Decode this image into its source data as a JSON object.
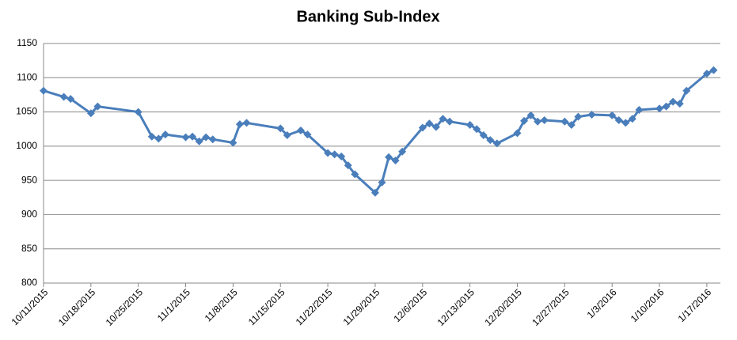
{
  "chart_data": {
    "type": "line",
    "title": "Banking Sub-Index",
    "x": [
      "10/11/2015",
      "10/14/2015",
      "10/15/2015",
      "10/18/2015",
      "10/19/2015",
      "10/25/2015",
      "10/27/2015",
      "10/28/2015",
      "10/29/2015",
      "11/1/2015",
      "11/2/2015",
      "11/3/2015",
      "11/4/2015",
      "11/5/2015",
      "11/8/2015",
      "11/9/2015",
      "11/10/2015",
      "11/15/2015",
      "11/16/2015",
      "11/18/2015",
      "11/19/2015",
      "11/22/2015",
      "11/23/2015",
      "11/24/2015",
      "11/25/2015",
      "11/26/2015",
      "11/29/2015",
      "11/30/2015",
      "12/1/2015",
      "12/2/2015",
      "12/3/2015",
      "12/6/2015",
      "12/7/2015",
      "12/8/2015",
      "12/9/2015",
      "12/10/2015",
      "12/13/2015",
      "12/14/2015",
      "12/15/2015",
      "12/16/2015",
      "12/17/2015",
      "12/20/2015",
      "12/21/2015",
      "12/22/2015",
      "12/23/2015",
      "12/24/2015",
      "12/27/2015",
      "12/28/2015",
      "12/29/2015",
      "12/31/2015",
      "1/3/2016",
      "1/4/2016",
      "1/5/2016",
      "1/6/2016",
      "1/7/2016",
      "1/10/2016",
      "1/11/2016",
      "1/12/2016",
      "1/13/2016",
      "1/14/2016",
      "1/17/2016",
      "1/18/2016"
    ],
    "series": [
      {
        "name": "Banking Sub-Index",
        "color": "#4a7ebb",
        "values": [
          1081,
          1072,
          1069,
          1048,
          1058,
          1050,
          1014,
          1011,
          1017,
          1013,
          1014,
          1007,
          1013,
          1010,
          1005,
          1032,
          1034,
          1026,
          1016,
          1023,
          1017,
          990,
          988,
          985,
          972,
          959,
          932,
          947,
          984,
          979,
          992,
          1027,
          1033,
          1028,
          1040,
          1036,
          1031,
          1025,
          1016,
          1009,
          1004,
          1019,
          1037,
          1045,
          1036,
          1038,
          1036,
          1031,
          1043,
          1046,
          1045,
          1038,
          1034,
          1040,
          1053,
          1055,
          1058,
          1065,
          1062,
          1081,
          1106,
          1111
        ]
      }
    ],
    "xlim": [
      "10/11/2015",
      "1/19/2016"
    ],
    "xticks": [
      "10/11/2015",
      "10/18/2015",
      "10/25/2015",
      "11/1/2015",
      "11/8/2015",
      "11/15/2015",
      "11/22/2015",
      "11/29/2015",
      "12/6/2015",
      "12/13/2015",
      "12/20/2015",
      "12/27/2015",
      "1/3/2016",
      "1/10/2016",
      "1/17/2016"
    ],
    "ylim": [
      800,
      1150
    ],
    "yticks": [
      800,
      850,
      900,
      950,
      1000,
      1050,
      1100,
      1150
    ],
    "grid": true
  }
}
